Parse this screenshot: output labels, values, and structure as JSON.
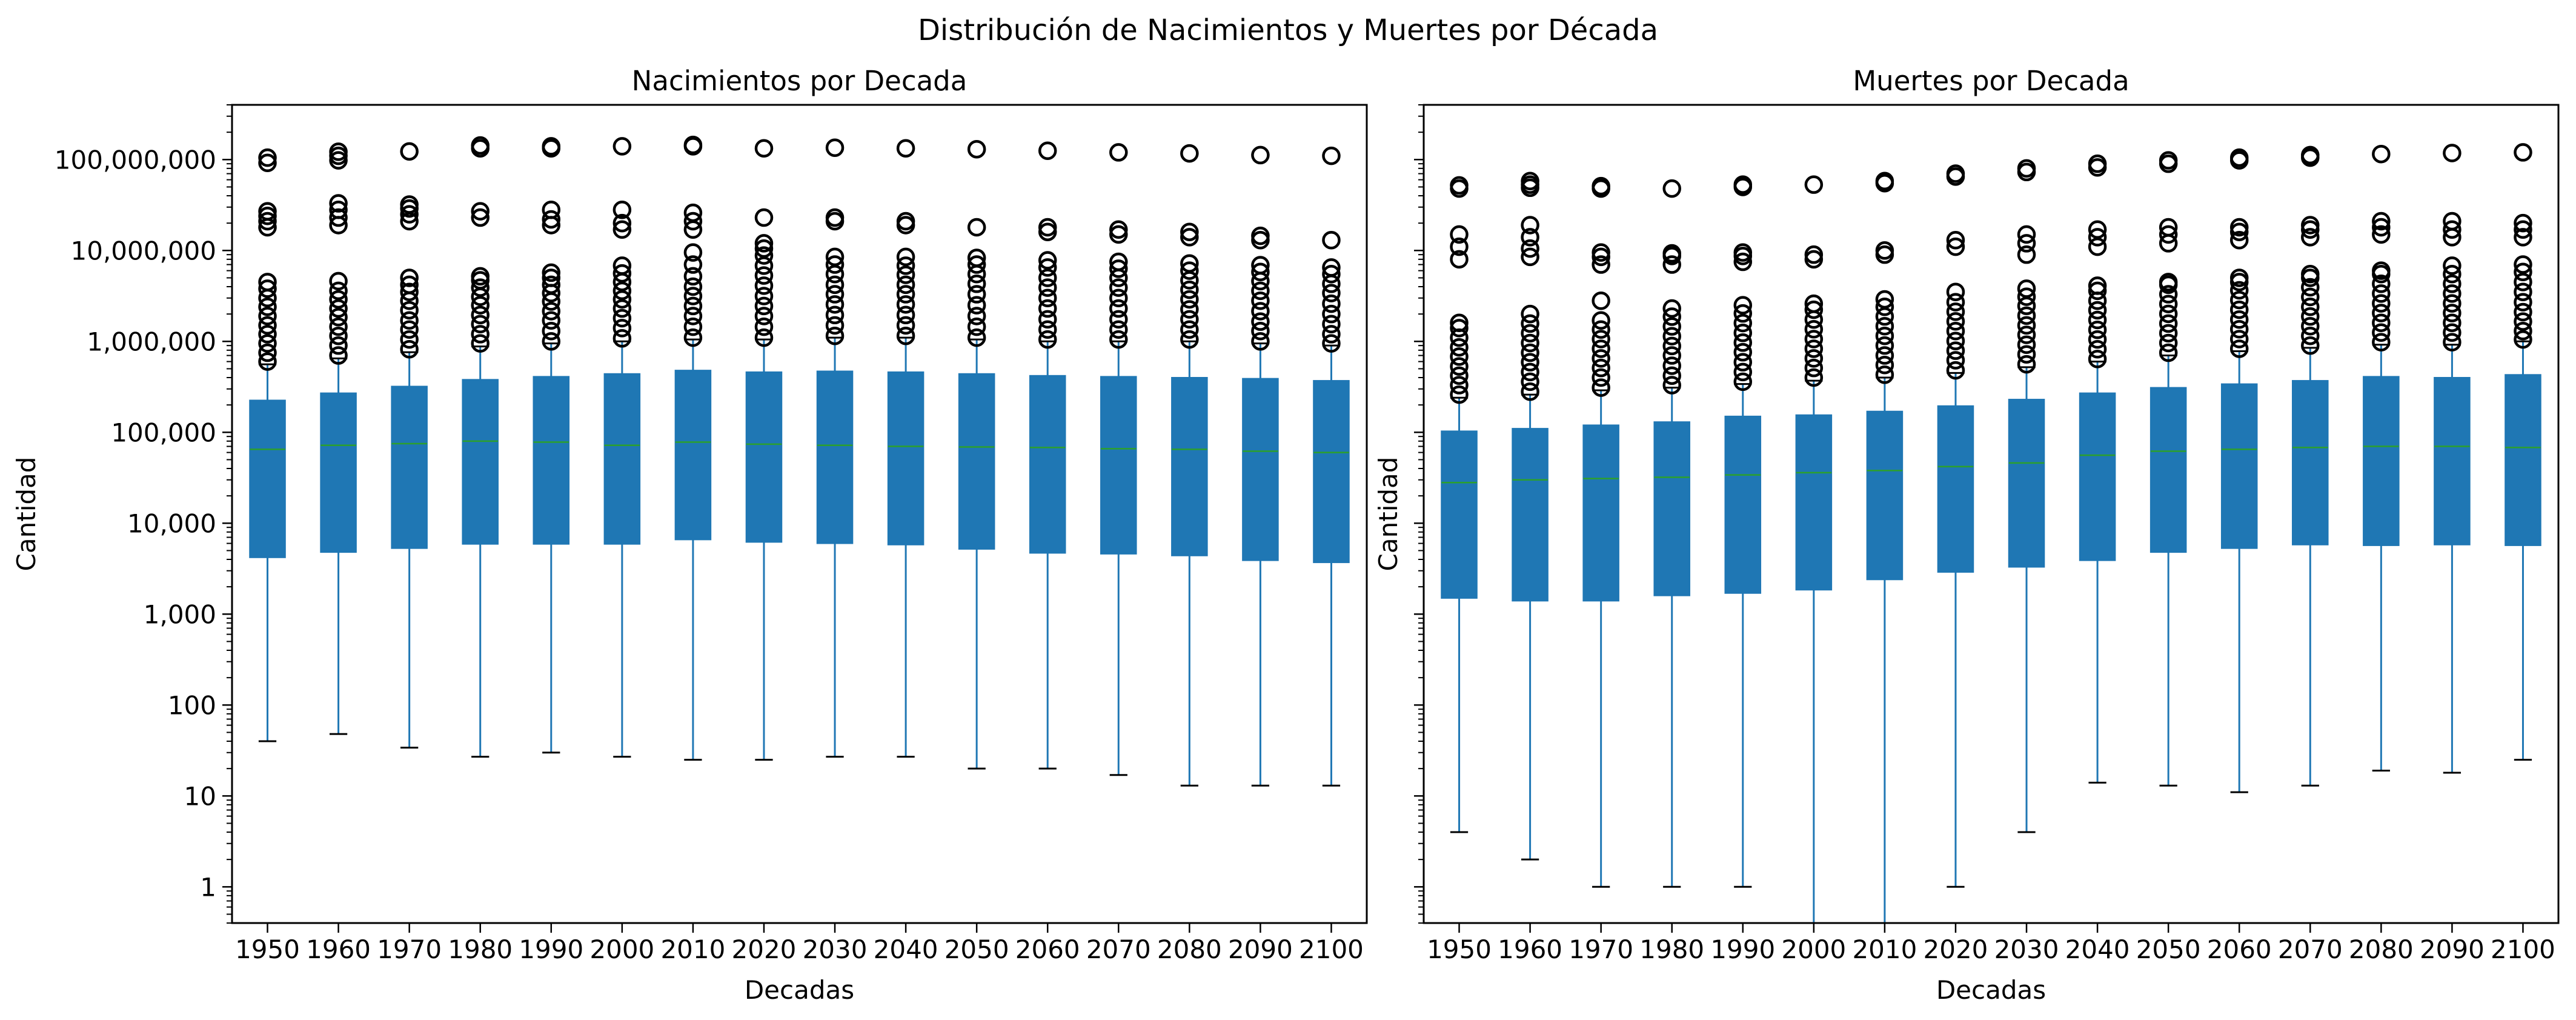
{
  "suptitle": "Distribución de Nacimientos y Muertes por Década",
  "colors": {
    "box": "#1f77b4",
    "median": "#2ca02c",
    "whisker": "#1f77b4",
    "cap": "#000000",
    "flier": "#000000"
  },
  "chart_data": [
    {
      "type": "box",
      "title": "Nacimientos por Decada",
      "xlabel": "Decadas",
      "ylabel": "Cantidad",
      "yscale": "log",
      "ylim": [
        0.4,
        400000000
      ],
      "ytick_values": [
        1,
        10,
        100,
        1000,
        10000,
        100000,
        1000000,
        10000000,
        100000000
      ],
      "ytick_labels": [
        "1",
        "10",
        "100",
        "1,000",
        "10,000",
        "100,000",
        "1,000,000",
        "10,000,000",
        "100,000,000"
      ],
      "categories": [
        "1950",
        "1960",
        "1970",
        "1980",
        "1990",
        "2000",
        "2010",
        "2020",
        "2030",
        "2040",
        "2050",
        "2060",
        "2070",
        "2080",
        "2090",
        "2100"
      ],
      "boxes": [
        {
          "whislo": 40,
          "q1": 4200,
          "med": 65000,
          "q3": 225000,
          "whishi": 560000,
          "fliers": [
            600000,
            750000,
            950000,
            1200000,
            1500000,
            1900000,
            2400000,
            3000000,
            3800000,
            4500000,
            18000000,
            21000000,
            24000000,
            27000000,
            92000000,
            105000000
          ]
        },
        {
          "whislo": 48,
          "q1": 4800,
          "med": 72000,
          "q3": 270000,
          "whishi": 650000,
          "fliers": [
            700000,
            900000,
            1150000,
            1450000,
            1850000,
            2300000,
            2900000,
            3600000,
            4600000,
            19000000,
            23000000,
            28000000,
            33000000,
            98000000,
            110000000,
            122000000
          ]
        },
        {
          "whislo": 34,
          "q1": 5300,
          "med": 75000,
          "q3": 320000,
          "whishi": 760000,
          "fliers": [
            820000,
            1050000,
            1350000,
            1700000,
            2200000,
            2800000,
            3500000,
            4200000,
            5000000,
            21000000,
            25000000,
            29000000,
            32000000,
            123000000
          ]
        },
        {
          "whislo": 27,
          "q1": 5900,
          "med": 80000,
          "q3": 380000,
          "whishi": 880000,
          "fliers": [
            950000,
            1200000,
            1550000,
            1950000,
            2500000,
            3100000,
            3900000,
            4700000,
            5200000,
            23000000,
            27000000,
            133000000,
            143000000
          ]
        },
        {
          "whislo": 30,
          "q1": 5900,
          "med": 78000,
          "q3": 410000,
          "whishi": 950000,
          "fliers": [
            1000000,
            1300000,
            1700000,
            2150000,
            2750000,
            3400000,
            4200000,
            5000000,
            5700000,
            19000000,
            22000000,
            28000000,
            133000000,
            140000000
          ]
        },
        {
          "whislo": 27,
          "q1": 5900,
          "med": 72000,
          "q3": 440000,
          "whishi": 1000000,
          "fliers": [
            1080000,
            1400000,
            1800000,
            2300000,
            2900000,
            3600000,
            4500000,
            5600000,
            6800000,
            17000000,
            20000000,
            28000000,
            140000000
          ]
        },
        {
          "whislo": 25,
          "q1": 6600,
          "med": 78000,
          "q3": 480000,
          "whishi": 1050000,
          "fliers": [
            1100000,
            1450000,
            1900000,
            2450000,
            3150000,
            4000000,
            5200000,
            7000000,
            9500000,
            17000000,
            21000000,
            26000000,
            140000000,
            145000000
          ]
        },
        {
          "whislo": 25,
          "q1": 6200,
          "med": 74000,
          "q3": 460000,
          "whishi": 1050000,
          "fliers": [
            1100000,
            1450000,
            1900000,
            2450000,
            3150000,
            4100000,
            5300000,
            6800000,
            8800000,
            10500000,
            12000000,
            23000000,
            133000000
          ]
        },
        {
          "whislo": 27,
          "q1": 6000,
          "med": 72000,
          "q3": 470000,
          "whishi": 1100000,
          "fliers": [
            1150000,
            1500000,
            1950000,
            2550000,
            3300000,
            4200000,
            5500000,
            7000000,
            8500000,
            21000000,
            23000000,
            135000000
          ]
        },
        {
          "whislo": 27,
          "q1": 5800,
          "med": 70000,
          "q3": 460000,
          "whishi": 1100000,
          "fliers": [
            1150000,
            1500000,
            1950000,
            2550000,
            3300000,
            4200000,
            5400000,
            6800000,
            8500000,
            19000000,
            21000000,
            133000000
          ]
        },
        {
          "whislo": 20,
          "q1": 5200,
          "med": 69000,
          "q3": 440000,
          "whishi": 1050000,
          "fliers": [
            1100000,
            1450000,
            1900000,
            2500000,
            3300000,
            4300000,
            5500000,
            7000000,
            8300000,
            18000000,
            130000000
          ]
        },
        {
          "whislo": 20,
          "q1": 4700,
          "med": 68000,
          "q3": 420000,
          "whishi": 1000000,
          "fliers": [
            1050000,
            1350000,
            1750000,
            2300000,
            3000000,
            3900000,
            5000000,
            6500000,
            7800000,
            16000000,
            18000000,
            125000000
          ]
        },
        {
          "whislo": 17,
          "q1": 4600,
          "med": 66000,
          "q3": 410000,
          "whishi": 1000000,
          "fliers": [
            1050000,
            1350000,
            1750000,
            2300000,
            3000000,
            3900000,
            5000000,
            6300000,
            7500000,
            15000000,
            17000000,
            120000000
          ]
        },
        {
          "whislo": 13,
          "q1": 4400,
          "med": 65000,
          "q3": 400000,
          "whishi": 1000000,
          "fliers": [
            1050000,
            1350000,
            1750000,
            2250000,
            2900000,
            3700000,
            4700000,
            6000000,
            7200000,
            14000000,
            16000000,
            117000000
          ]
        },
        {
          "whislo": 13,
          "q1": 3900,
          "med": 62000,
          "q3": 390000,
          "whishi": 950000,
          "fliers": [
            1000000,
            1300000,
            1650000,
            2150000,
            2800000,
            3600000,
            4600000,
            5800000,
            6900000,
            13000000,
            14500000,
            112000000
          ]
        },
        {
          "whislo": 13,
          "q1": 3700,
          "med": 60000,
          "q3": 370000,
          "whishi": 900000,
          "fliers": [
            950000,
            1200000,
            1550000,
            2000000,
            2600000,
            3400000,
            4300000,
            5500000,
            6500000,
            13000000,
            110000000
          ]
        }
      ]
    },
    {
      "type": "box",
      "title": "Muertes por Decada",
      "xlabel": "Decadas",
      "ylabel": "Cantidad",
      "yscale": "log",
      "ylim": [
        0.4,
        400000000
      ],
      "ytick_values": [
        1,
        10,
        100,
        1000,
        10000,
        100000,
        1000000,
        10000000,
        100000000
      ],
      "ytick_labels": [],
      "categories": [
        "1950",
        "1960",
        "1970",
        "1980",
        "1990",
        "2000",
        "2010",
        "2020",
        "2030",
        "2040",
        "2050",
        "2060",
        "2070",
        "2080",
        "2090",
        "2100"
      ],
      "boxes": [
        {
          "whislo": 4,
          "q1": 1500,
          "med": 28000,
          "q3": 103000,
          "whishi": 240000,
          "fliers": [
            260000,
            330000,
            420000,
            530000,
            680000,
            860000,
            1100000,
            1400000,
            1600000,
            8000000,
            11000000,
            15000000,
            48000000,
            52000000
          ]
        },
        {
          "whislo": 2,
          "q1": 1400,
          "med": 30000,
          "q3": 110000,
          "whishi": 260000,
          "fliers": [
            280000,
            360000,
            460000,
            590000,
            750000,
            960000,
            1230000,
            1570000,
            2000000,
            8500000,
            10500000,
            14000000,
            19000000,
            49000000,
            53000000,
            58000000
          ]
        },
        {
          "whislo": 1,
          "q1": 1400,
          "med": 31000,
          "q3": 120000,
          "whishi": 290000,
          "fliers": [
            310000,
            400000,
            510000,
            650000,
            830000,
            1060000,
            1350000,
            1700000,
            2800000,
            7000000,
            8500000,
            9500000,
            48000000,
            51000000
          ]
        },
        {
          "whislo": 1,
          "q1": 1600,
          "med": 32000,
          "q3": 130000,
          "whishi": 310000,
          "fliers": [
            330000,
            420000,
            540000,
            700000,
            890000,
            1140000,
            1460000,
            1870000,
            2300000,
            7000000,
            8700000,
            9300000,
            48000000
          ]
        },
        {
          "whislo": 1,
          "q1": 1700,
          "med": 34000,
          "q3": 150000,
          "whishi": 340000,
          "fliers": [
            360000,
            460000,
            590000,
            760000,
            970000,
            1240000,
            1590000,
            2030000,
            2500000,
            7500000,
            8700000,
            9500000,
            50000000,
            53000000
          ]
        },
        {
          "whislo": 0.3,
          "q1": 1850,
          "med": 36000,
          "q3": 155000,
          "whishi": 370000,
          "fliers": [
            400000,
            510000,
            650000,
            830000,
            1060000,
            1360000,
            1740000,
            2230000,
            2600000,
            8000000,
            9000000,
            53000000
          ]
        },
        {
          "whislo": 0.3,
          "q1": 2400,
          "med": 38000,
          "q3": 170000,
          "whishi": 400000,
          "fliers": [
            430000,
            550000,
            700000,
            900000,
            1150000,
            1470000,
            1880000,
            2400000,
            2900000,
            9000000,
            10000000,
            55000000,
            58000000
          ]
        },
        {
          "whislo": 1,
          "q1": 2900,
          "med": 42000,
          "q3": 195000,
          "whishi": 450000,
          "fliers": [
            480000,
            620000,
            790000,
            1010000,
            1300000,
            1660000,
            2120000,
            2700000,
            3500000,
            11000000,
            13000000,
            65000000,
            70000000
          ]
        },
        {
          "whislo": 4,
          "q1": 3300,
          "med": 46000,
          "q3": 230000,
          "whishi": 520000,
          "fliers": [
            560000,
            720000,
            920000,
            1180000,
            1500000,
            1920000,
            2460000,
            3100000,
            3800000,
            9000000,
            12000000,
            15000000,
            73000000,
            80000000
          ]
        },
        {
          "whislo": 14,
          "q1": 3900,
          "med": 56000,
          "q3": 270000,
          "whishi": 600000,
          "fliers": [
            640000,
            820000,
            1050000,
            1340000,
            1720000,
            2200000,
            2800000,
            3600000,
            4100000,
            11000000,
            14000000,
            17000000,
            82000000,
            90000000
          ]
        },
        {
          "whislo": 13,
          "q1": 4800,
          "med": 62000,
          "q3": 310000,
          "whishi": 700000,
          "fliers": [
            750000,
            960000,
            1230000,
            1570000,
            2010000,
            2580000,
            3300000,
            4200000,
            4500000,
            12000000,
            15000000,
            18000000,
            90000000,
            98000000
          ]
        },
        {
          "whislo": 11,
          "q1": 5300,
          "med": 65000,
          "q3": 340000,
          "whishi": 780000,
          "fliers": [
            830000,
            1060000,
            1360000,
            1740000,
            2230000,
            2850000,
            3650000,
            4500000,
            5000000,
            13000000,
            16000000,
            18000000,
            98000000,
            105000000
          ]
        },
        {
          "whislo": 13,
          "q1": 5800,
          "med": 68000,
          "q3": 370000,
          "whishi": 850000,
          "fliers": [
            900000,
            1150000,
            1470000,
            1880000,
            2400000,
            3080000,
            3940000,
            5000000,
            5500000,
            14000000,
            17000000,
            19000000,
            105000000,
            112000000
          ]
        },
        {
          "whislo": 19,
          "q1": 5700,
          "med": 70000,
          "q3": 410000,
          "whishi": 920000,
          "fliers": [
            980000,
            1250000,
            1600000,
            2050000,
            2620000,
            3360000,
            4300000,
            5500000,
            6000000,
            15000000,
            18000000,
            21000000,
            115000000
          ]
        },
        {
          "whislo": 18,
          "q1": 5800,
          "med": 70000,
          "q3": 400000,
          "whishi": 920000,
          "fliers": [
            980000,
            1250000,
            1600000,
            2050000,
            2620000,
            3360000,
            4300000,
            5500000,
            6800000,
            14000000,
            17000000,
            21000000,
            118000000
          ]
        },
        {
          "whislo": 25,
          "q1": 5700,
          "med": 68000,
          "q3": 430000,
          "whishi": 1000000,
          "fliers": [
            1050000,
            1300000,
            1650000,
            2100000,
            2700000,
            3500000,
            4500000,
            5800000,
            7000000,
            14000000,
            17000000,
            20000000,
            120000000
          ]
        }
      ]
    }
  ]
}
